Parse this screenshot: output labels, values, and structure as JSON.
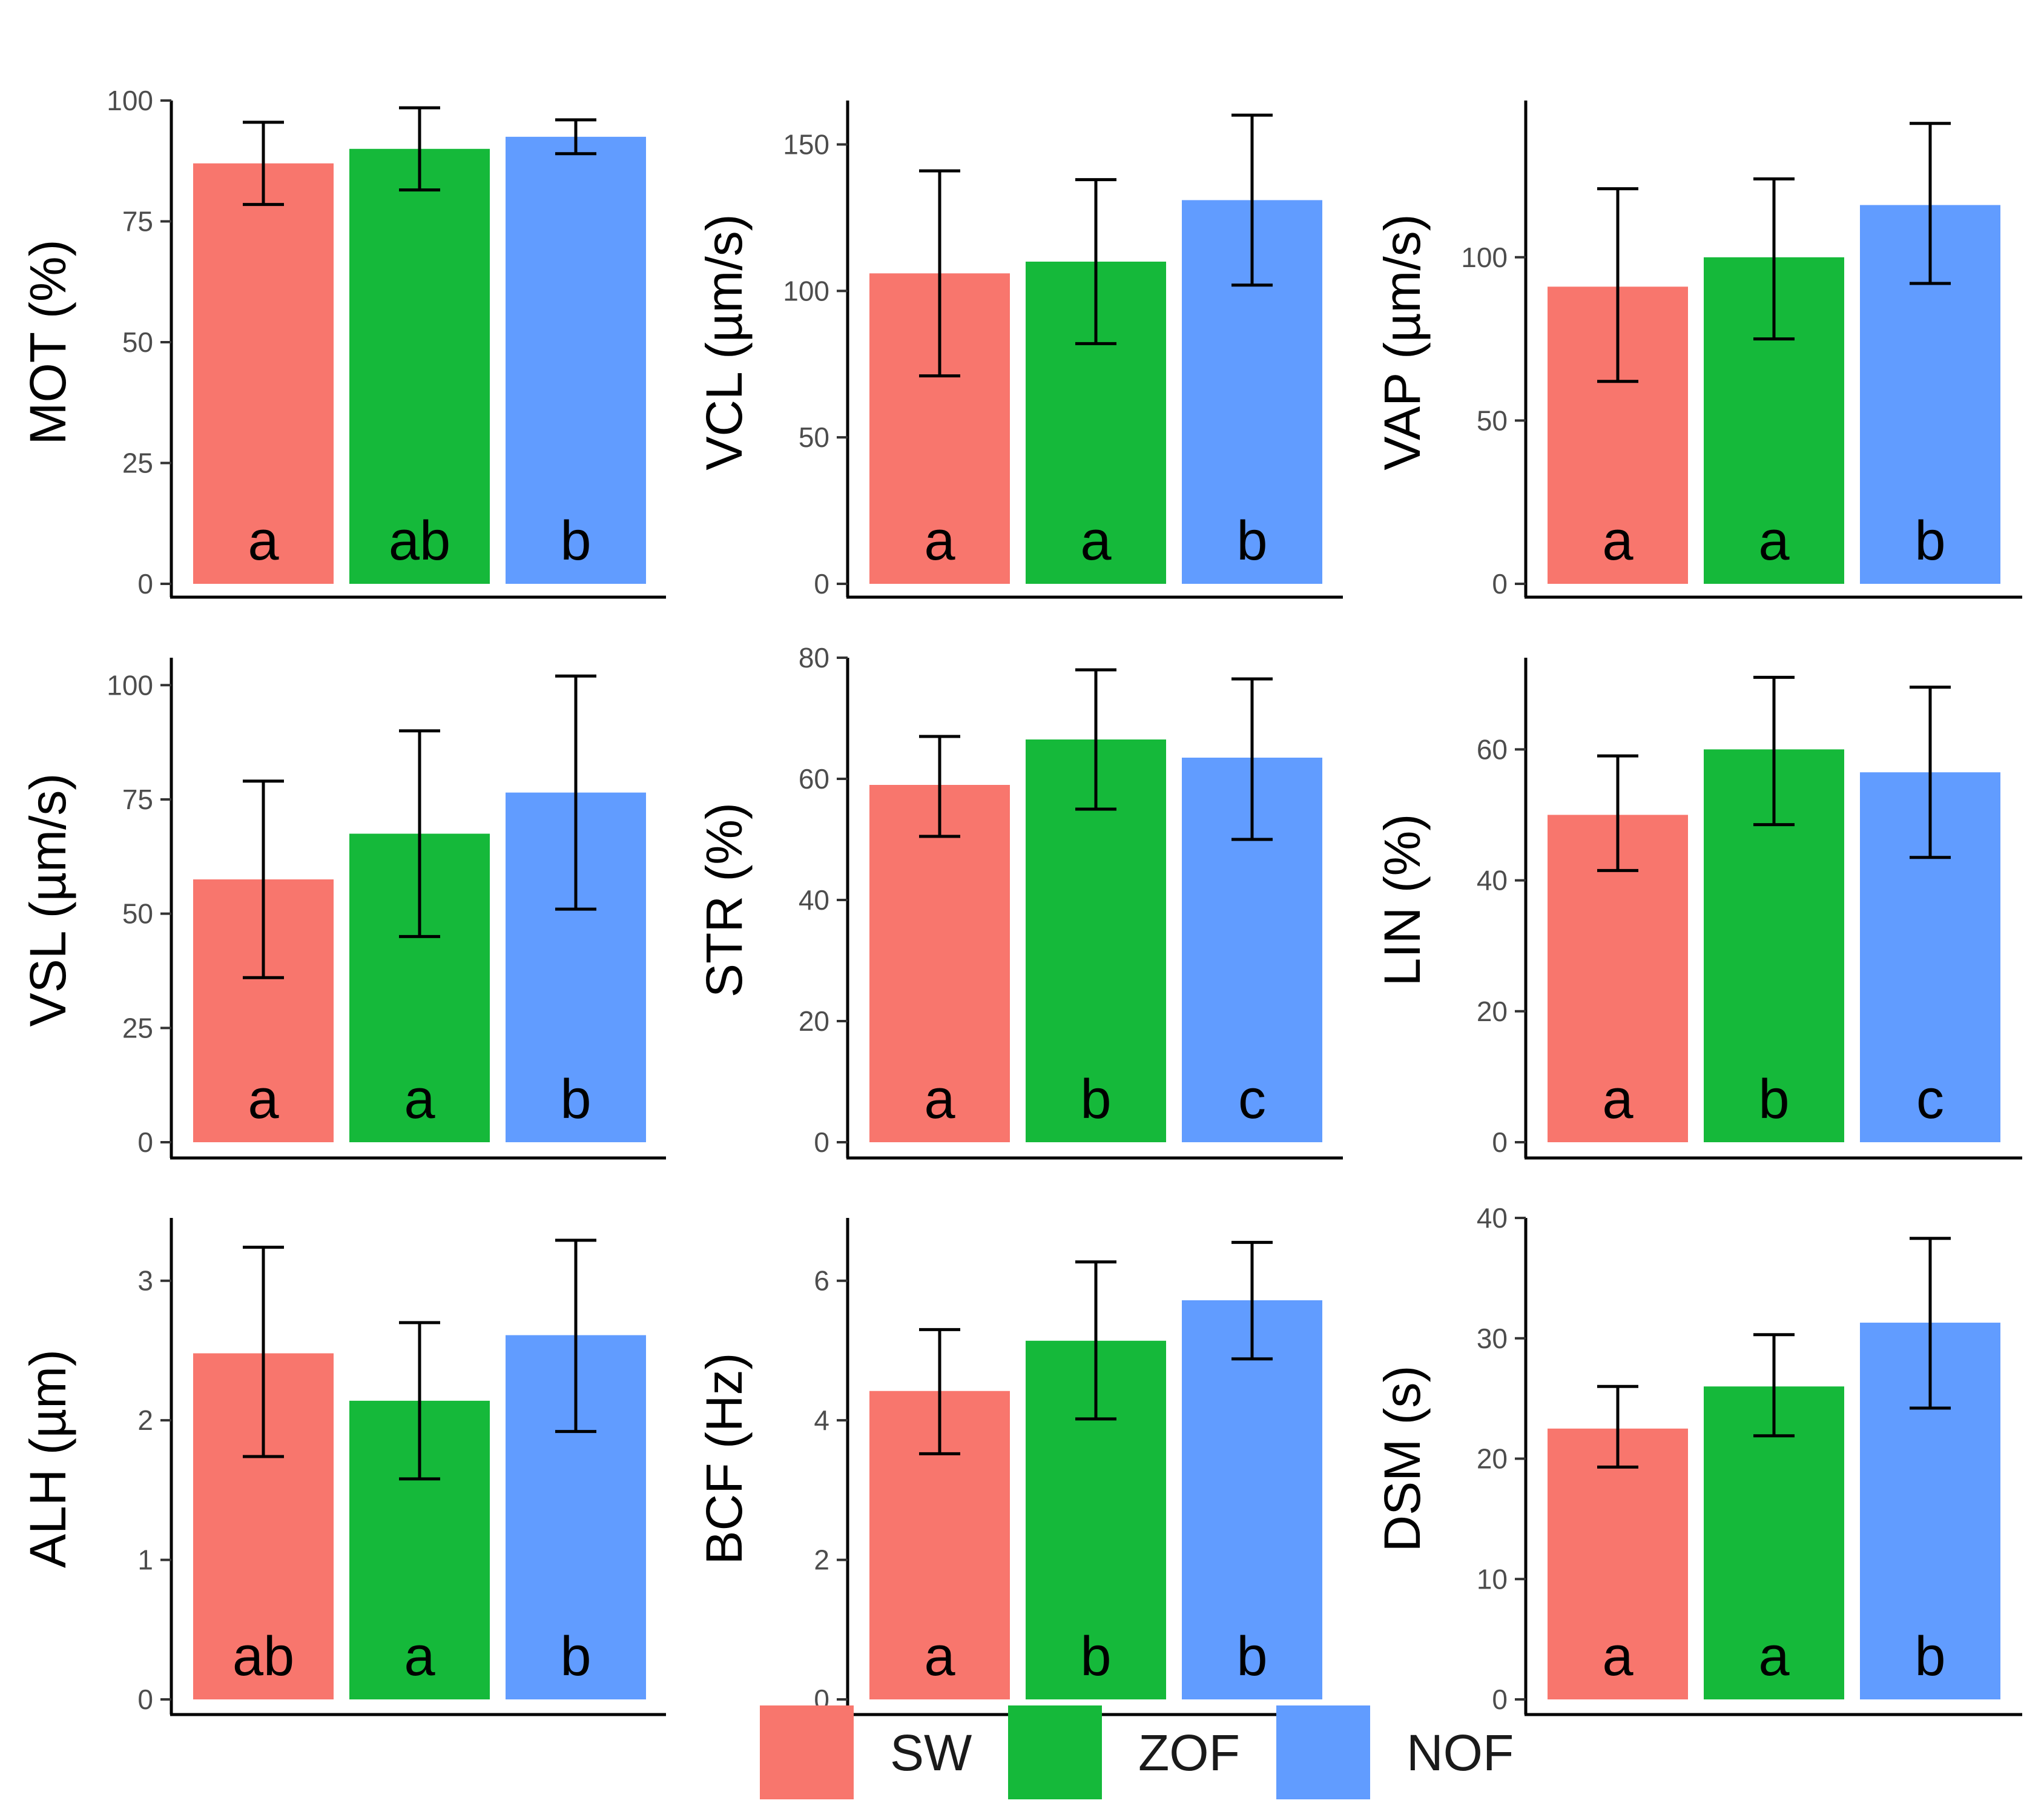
{
  "colors": {
    "SW": "#F8766D",
    "ZOF": "#15B93A",
    "NOF": "#619CFF",
    "axis": "#000000",
    "text": "#4d4d4d"
  },
  "legend": {
    "items": [
      {
        "key": "SW",
        "label": "SW"
      },
      {
        "key": "ZOF",
        "label": "ZOF"
      },
      {
        "key": "NOF",
        "label": "NOF"
      }
    ]
  },
  "chart_data": [
    {
      "type": "bar",
      "ylabel": "MOT (%)",
      "ylim": [
        0,
        100
      ],
      "yticks": [
        0,
        25,
        50,
        75,
        100
      ],
      "categories": [
        "SW",
        "ZOF",
        "NOF"
      ],
      "values": [
        87,
        90,
        92.5
      ],
      "error_low": [
        78.5,
        81.5,
        89
      ],
      "error_high": [
        95.5,
        98.5,
        96
      ],
      "letters": [
        "a",
        "ab",
        "b"
      ]
    },
    {
      "type": "bar",
      "ylabel": "VCL (µm/s)",
      "ylim": [
        0,
        165
      ],
      "yticks": [
        0,
        50,
        100,
        150
      ],
      "categories": [
        "SW",
        "ZOF",
        "NOF"
      ],
      "values": [
        106,
        110,
        131
      ],
      "error_low": [
        71,
        82,
        102
      ],
      "error_high": [
        141,
        138,
        160
      ],
      "letters": [
        "a",
        "a",
        "b"
      ]
    },
    {
      "type": "bar",
      "ylabel": "VAP (µm/s)",
      "ylim": [
        0,
        148
      ],
      "yticks": [
        0,
        50,
        100
      ],
      "categories": [
        "SW",
        "ZOF",
        "NOF"
      ],
      "values": [
        91,
        100,
        116
      ],
      "error_low": [
        62,
        75,
        92
      ],
      "error_high": [
        121,
        124,
        141
      ],
      "letters": [
        "a",
        "a",
        "b"
      ]
    },
    {
      "type": "bar",
      "ylabel": "VSL (µm/s)",
      "ylim": [
        0,
        106
      ],
      "yticks": [
        0,
        25,
        50,
        75,
        100
      ],
      "categories": [
        "SW",
        "ZOF",
        "NOF"
      ],
      "values": [
        57.5,
        67.5,
        76.5
      ],
      "error_low": [
        36,
        45,
        51
      ],
      "error_high": [
        79,
        90,
        102
      ],
      "letters": [
        "a",
        "a",
        "b"
      ]
    },
    {
      "type": "bar",
      "ylabel": "STR (%)",
      "ylim": [
        0,
        80
      ],
      "yticks": [
        0,
        20,
        40,
        60,
        80
      ],
      "categories": [
        "SW",
        "ZOF",
        "NOF"
      ],
      "values": [
        59,
        66.5,
        63.5
      ],
      "error_low": [
        50.5,
        55,
        50
      ],
      "error_high": [
        67,
        78,
        76.5
      ],
      "letters": [
        "a",
        "b",
        "c"
      ]
    },
    {
      "type": "bar",
      "ylabel": "LIN (%)",
      "ylim": [
        0,
        74
      ],
      "yticks": [
        0,
        20,
        40,
        60
      ],
      "categories": [
        "SW",
        "ZOF",
        "NOF"
      ],
      "values": [
        50,
        60,
        56.5
      ],
      "error_low": [
        41.5,
        48.5,
        43.5
      ],
      "error_high": [
        59,
        71,
        69.5
      ],
      "letters": [
        "a",
        "b",
        "c"
      ]
    },
    {
      "type": "bar",
      "ylabel": "ALH (µm)",
      "ylim": [
        0,
        3.45
      ],
      "yticks": [
        0,
        1,
        2,
        3
      ],
      "categories": [
        "SW",
        "ZOF",
        "NOF"
      ],
      "values": [
        2.48,
        2.14,
        2.61
      ],
      "error_low": [
        1.74,
        1.58,
        1.92
      ],
      "error_high": [
        3.24,
        2.7,
        3.29
      ],
      "letters": [
        "ab",
        "a",
        "b"
      ]
    },
    {
      "type": "bar",
      "ylabel": "BCF (Hz)",
      "ylim": [
        0,
        6.9
      ],
      "yticks": [
        0,
        2,
        4,
        6
      ],
      "categories": [
        "SW",
        "ZOF",
        "NOF"
      ],
      "values": [
        4.42,
        5.14,
        5.72
      ],
      "error_low": [
        3.52,
        4.02,
        4.88
      ],
      "error_high": [
        5.3,
        6.27,
        6.55
      ],
      "letters": [
        "a",
        "b",
        "b"
      ]
    },
    {
      "type": "bar",
      "ylabel": "DSM (s)",
      "ylim": [
        0,
        40
      ],
      "yticks": [
        0,
        10,
        20,
        30,
        40
      ],
      "categories": [
        "SW",
        "ZOF",
        "NOF"
      ],
      "values": [
        22.5,
        26,
        31.3
      ],
      "error_low": [
        19.3,
        21.9,
        24.2
      ],
      "error_high": [
        26,
        30.3,
        38.3
      ],
      "letters": [
        "a",
        "a",
        "b"
      ]
    }
  ]
}
